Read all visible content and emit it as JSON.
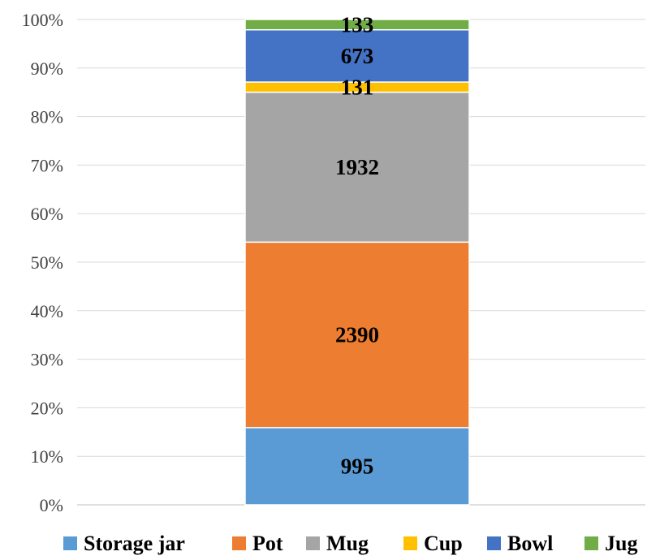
{
  "chart_data": {
    "type": "bar",
    "stacked": "percent",
    "categories": [
      ""
    ],
    "series": [
      {
        "name": "Storage jar",
        "values": [
          995
        ],
        "color": "#5B9BD5"
      },
      {
        "name": "Pot",
        "values": [
          2390
        ],
        "color": "#ED7D31"
      },
      {
        "name": "Mug",
        "values": [
          1932
        ],
        "color": "#A5A5A5"
      },
      {
        "name": "Cup",
        "values": [
          131
        ],
        "color": "#FFC000"
      },
      {
        "name": "Bowl",
        "values": [
          673
        ],
        "color": "#4472C4"
      },
      {
        "name": "Jug",
        "values": [
          133
        ],
        "color": "#70AD47"
      }
    ],
    "yticks": [
      "0%",
      "10%",
      "20%",
      "30%",
      "40%",
      "50%",
      "60%",
      "70%",
      "80%",
      "90%",
      "100%"
    ],
    "ylim": [
      0,
      100
    ],
    "grid": true,
    "legend": "bottom",
    "title": "",
    "xlabel": "",
    "ylabel": ""
  }
}
